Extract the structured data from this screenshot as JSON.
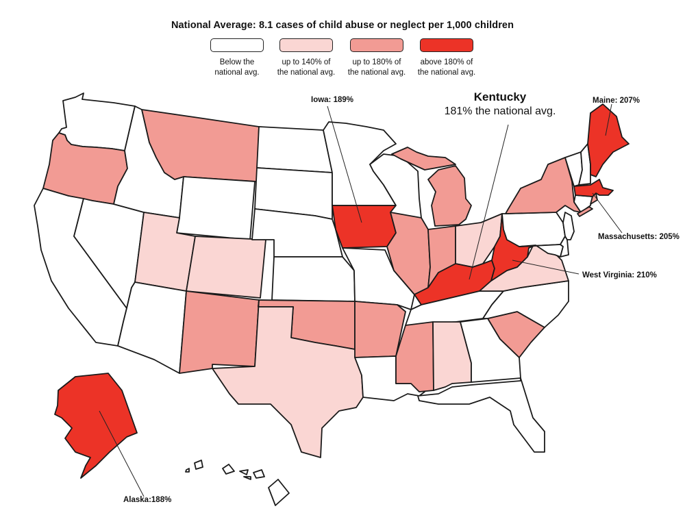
{
  "title": "National Average: 8.1 cases of child abuse or neglect per 1,000 children",
  "colors": {
    "below": "#ffffff",
    "up_to_140": "#fad6d3",
    "up_to_180": "#f29b94",
    "above_180": "#ec3327",
    "outline": "#1a1a1a"
  },
  "legend": [
    {
      "label": "Below the\nnational avg.",
      "color": "#ffffff"
    },
    {
      "label": "up to 140% of\nthe national avg.",
      "color": "#fad6d3"
    },
    {
      "label": "up to 180% of\nthe national avg.",
      "color": "#f29b94"
    },
    {
      "label": "above 180% of\nthe national avg.",
      "color": "#ec3327"
    }
  ],
  "states": {
    "washington": "below",
    "oregon": "up_to_180",
    "california": "below",
    "nevada": "below",
    "idaho": "below",
    "montana": "up_to_180",
    "wyoming": "below",
    "utah": "up_to_140",
    "colorado": "up_to_140",
    "arizona": "below",
    "new_mexico": "up_to_180",
    "north_dakota": "below",
    "south_dakota": "below",
    "nebraska": "below",
    "kansas": "below",
    "oklahoma": "up_to_180",
    "texas": "up_to_140",
    "minnesota": "below",
    "iowa": "above_180",
    "missouri": "below",
    "arkansas": "up_to_180",
    "louisiana": "below",
    "wisconsin": "below",
    "illinois": "up_to_180",
    "michigan": "up_to_180",
    "indiana": "up_to_180",
    "ohio": "up_to_140",
    "kentucky": "above_180",
    "tennessee": "below",
    "mississippi": "up_to_180",
    "alabama": "up_to_140",
    "georgia": "below",
    "florida": "below",
    "south_carolina": "up_to_180",
    "north_carolina": "below",
    "virginia": "up_to_140",
    "west_virginia": "above_180",
    "pennsylvania": "below",
    "new_york": "up_to_180",
    "maine": "above_180",
    "new_hampshire": "below",
    "vermont": "below",
    "massachusetts": "above_180",
    "rhode_island": "up_to_180",
    "connecticut": "below",
    "new_jersey": "below",
    "delaware": "below",
    "maryland": "below",
    "alaska": "above_180",
    "hawaii": "below"
  },
  "callouts": {
    "kentucky_name": "Kentucky",
    "kentucky_value": "181% the national avg.",
    "iowa": "Iowa: 189%",
    "maine": "Maine: 207%",
    "massachusetts": "Massachusetts: 205%",
    "west_virginia": "West Virginia: 210%",
    "alaska": "Alaska:188%"
  }
}
